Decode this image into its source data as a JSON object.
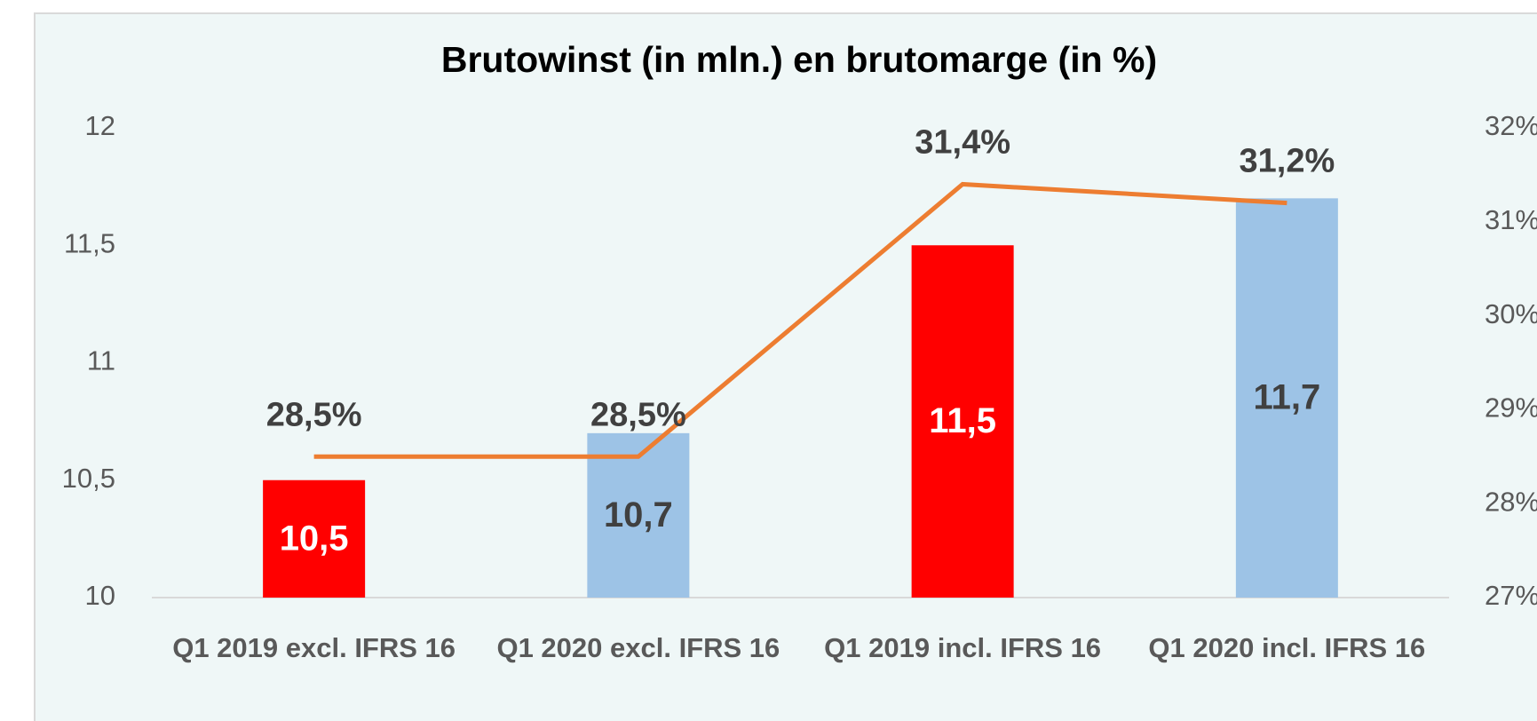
{
  "chart_data": {
    "type": "combo",
    "title": "Brutowinst (in mln.) en brutomarge (in %)",
    "categories": [
      "Q1 2019 excl. IFRS 16",
      "Q1 2020 excl. IFRS 16",
      "Q1 2019 incl. IFRS 16",
      "Q1 2020 incl. IFRS 16"
    ],
    "series": [
      {
        "type": "bar",
        "colors": [
          "#ff0000",
          "#9dc3e6",
          "#ff0000",
          "#9dc3e6"
        ],
        "label_colors": [
          "#ffffff",
          "#404040",
          "#ffffff",
          "#404040"
        ],
        "values": [
          10.5,
          10.7,
          11.5,
          11.7
        ],
        "value_labels": [
          "10,5",
          "10,7",
          "11,5",
          "11,7"
        ]
      },
      {
        "type": "line",
        "axis": "y2",
        "color": "#ed7d31",
        "values": [
          28.5,
          28.5,
          31.4,
          31.2
        ],
        "value_labels": [
          "28,5%",
          "28,5%",
          "31,4%",
          "31,2%"
        ]
      }
    ],
    "ylim": [
      10,
      12
    ],
    "yticks": [
      10,
      {
        "value": 10.5,
        "label": "10,5"
      },
      11,
      {
        "value": 11.5,
        "label": "11,5"
      },
      12
    ],
    "y2lim": [
      27,
      32
    ],
    "y2ticks": [
      {
        "value": 27,
        "label": "27%"
      },
      {
        "value": 28,
        "label": "28%"
      },
      {
        "value": 29,
        "label": "29%"
      },
      {
        "value": 30,
        "label": "30%"
      },
      {
        "value": 31,
        "label": "31%"
      },
      {
        "value": 32,
        "label": "32%"
      }
    ]
  }
}
